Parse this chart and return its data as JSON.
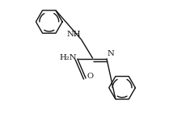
{
  "bg": "#ffffff",
  "lc": "#111111",
  "lw": 1.0,
  "fs": 7.2,
  "fig_w": 2.14,
  "fig_h": 1.45,
  "dpi": 100,
  "C1": [
    0.42,
    0.5
  ],
  "C2": [
    0.555,
    0.5
  ],
  "O": [
    0.495,
    0.325
  ],
  "N1x": 0.675,
  "N1y": 0.5,
  "N2x": 0.455,
  "N2y": 0.665,
  "Ph1cx": 0.81,
  "Ph1cy": 0.245,
  "Ph2cx": 0.175,
  "Ph2cy": 0.82,
  "ring_r": 0.115,
  "dsep": 0.022
}
